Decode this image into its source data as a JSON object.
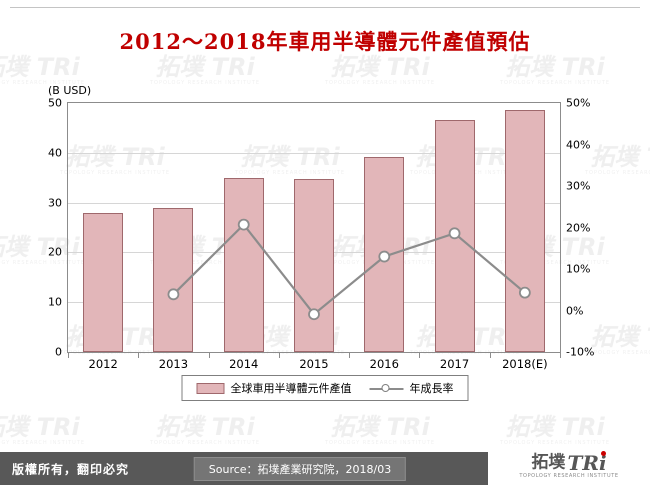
{
  "title": "2012～2018年車用半導體元件產值預估",
  "chart_data": {
    "type": "bar",
    "combo": "bar+line",
    "title": "2012～2018年車用半導體元件產值預估",
    "categories": [
      "2012",
      "2013",
      "2014",
      "2015",
      "2016",
      "2017",
      "2018(E)"
    ],
    "series": [
      {
        "name": "全球車用半導體元件產值",
        "type": "bar",
        "axis": "left",
        "values": [
          28,
          29,
          35,
          34.7,
          39.2,
          46.5,
          48.5
        ]
      },
      {
        "name": "年成長率",
        "type": "line",
        "axis": "right",
        "unit": "%",
        "values": [
          null,
          3.9,
          20.7,
          -0.9,
          13.0,
          18.6,
          4.3
        ]
      }
    ],
    "left_axis": {
      "label": "(B USD)",
      "min": 0,
      "max": 50,
      "ticks": [
        0,
        10,
        20,
        30,
        40,
        50
      ]
    },
    "right_axis": {
      "min": -10,
      "max": 50,
      "tick_labels_top_to_bottom": [
        "50%",
        "40%",
        "30%",
        "20%",
        "10%",
        "0%",
        "-10%"
      ]
    },
    "legend_position": "bottom",
    "grid": true
  },
  "colors": {
    "title": "#c00000",
    "bar_fill": "#e2b6b9",
    "bar_border": "#9f686c",
    "line": "#8c8c8c",
    "marker_fill": "#ffffff",
    "grid": "#d6d6d6",
    "footer_bg": "#585858",
    "source_bg": "#757575",
    "accent_red": "#cc0000"
  },
  "footer": {
    "copyright": "版權所有，翻印必究",
    "source": "Source：拓墣產業研究院，2018/03"
  },
  "logo": {
    "brand_cjk": "拓墣",
    "brand_latin": "TRi",
    "subtitle": "TOPOLOGY RESEARCH INSTITUTE"
  },
  "watermark": {
    "text": "拓墣 TRi",
    "subtitle": "TOPOLOGY RESEARCH INSTITUTE"
  }
}
